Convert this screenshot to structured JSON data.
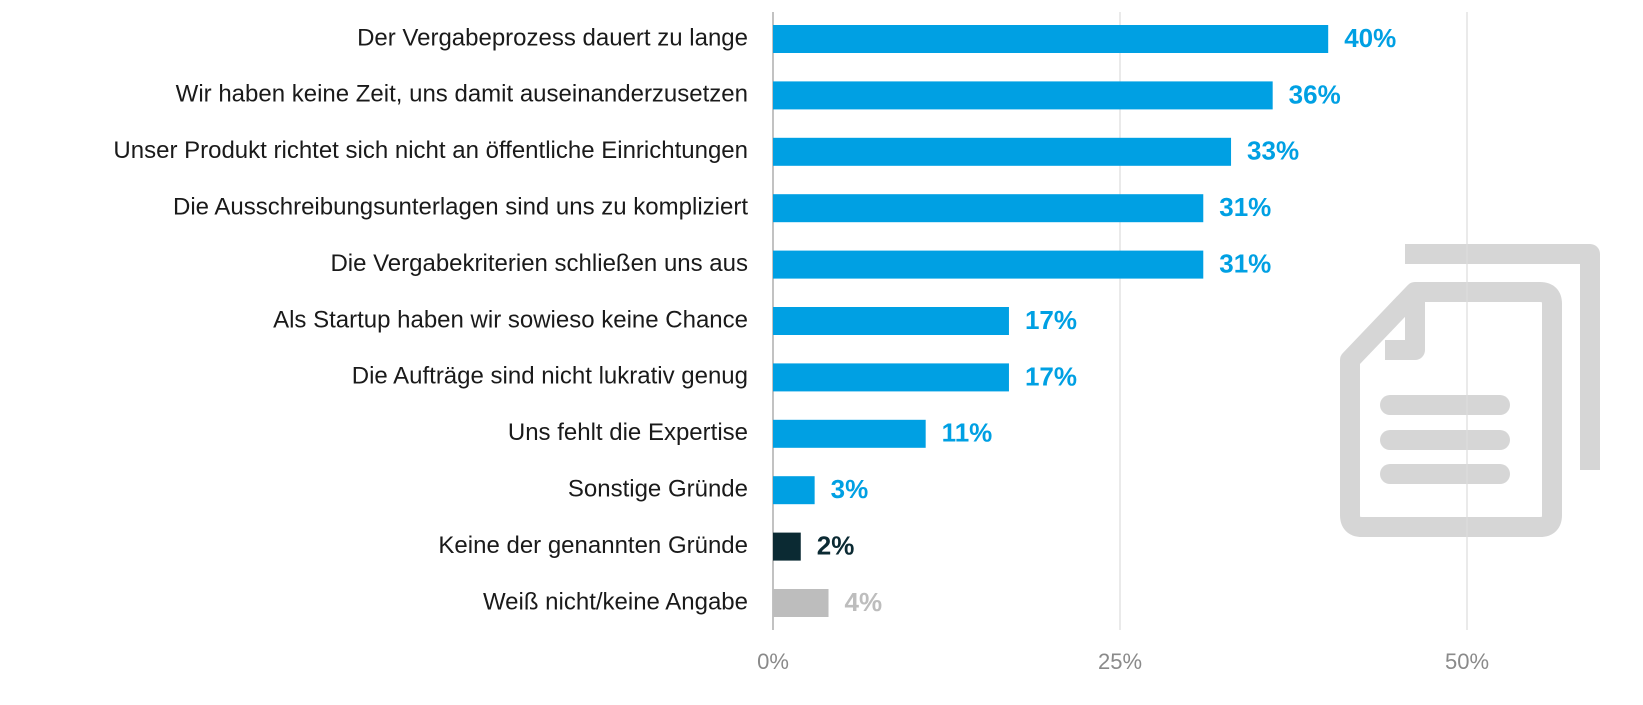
{
  "chart_data": {
    "type": "barh",
    "categories": [
      "Der Vergabeprozess dauert zu lange",
      "Wir haben keine Zeit, uns damit auseinanderzusetzen",
      "Unser Produkt richtet sich nicht an öffentliche Einrichtungen",
      "Die Ausschreibungsunterlagen sind uns zu kompliziert",
      "Die Vergabekriterien schließen uns aus",
      "Als Startup haben wir sowieso keine Chance",
      "Die Aufträge sind nicht lukrativ genug",
      "Uns fehlt die Expertise",
      "Sonstige Gründe",
      "Keine der genannten Gründe",
      "Weiß nicht/keine Angabe"
    ],
    "values": [
      40,
      36,
      33,
      31,
      31,
      17,
      17,
      11,
      3,
      2,
      4
    ],
    "value_labels": [
      "40%",
      "36%",
      "33%",
      "31%",
      "31%",
      "17%",
      "17%",
      "11%",
      "3%",
      "2%",
      "4%"
    ],
    "colors": [
      "#00a0e3",
      "#00a0e3",
      "#00a0e3",
      "#00a0e3",
      "#00a0e3",
      "#00a0e3",
      "#00a0e3",
      "#00a0e3",
      "#00a0e3",
      "#0b2a33",
      "#bdbdbd"
    ],
    "xlim": [
      0,
      50
    ],
    "xticks": [
      {
        "value": 0,
        "label": "0%"
      },
      {
        "value": 25,
        "label": "25%"
      },
      {
        "value": 50,
        "label": "50%"
      }
    ],
    "grid": true
  }
}
